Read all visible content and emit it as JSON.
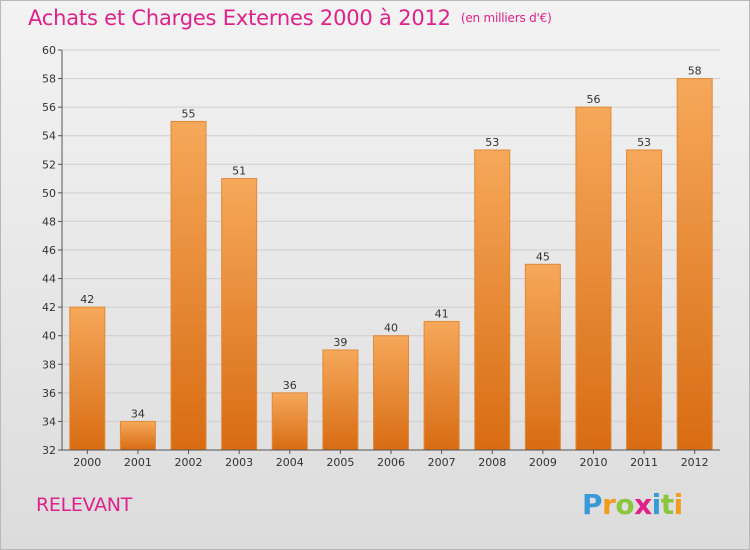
{
  "title": "Achats et Charges Externes 2000 à 2012",
  "title_unit": "(en milliers d'€)",
  "commune": "RELEVANT",
  "brand": {
    "letters": [
      "P",
      "r",
      "o",
      "x",
      "i",
      "t",
      "i"
    ],
    "colors": [
      "#3a9ad9",
      "#f29c1f",
      "#8cc63f",
      "#e0218a",
      "#3a9ad9",
      "#8cc63f",
      "#f29c1f"
    ]
  },
  "colors": {
    "title": "#e0218a",
    "bar_top": "#f6a85a",
    "bar_bottom": "#d86c13",
    "bar_stroke": "#e08a3a"
  },
  "chart_data": {
    "type": "bar",
    "categories": [
      "2000",
      "2001",
      "2002",
      "2003",
      "2004",
      "2005",
      "2006",
      "2007",
      "2008",
      "2009",
      "2010",
      "2011",
      "2012"
    ],
    "values": [
      42,
      34,
      55,
      51,
      36,
      39,
      40,
      41,
      53,
      45,
      56,
      53,
      58
    ],
    "ylim": [
      32,
      60
    ],
    "yticks": [
      32,
      34,
      36,
      38,
      40,
      42,
      44,
      46,
      48,
      50,
      52,
      54,
      56,
      58,
      60
    ],
    "grid": "horizontal"
  }
}
